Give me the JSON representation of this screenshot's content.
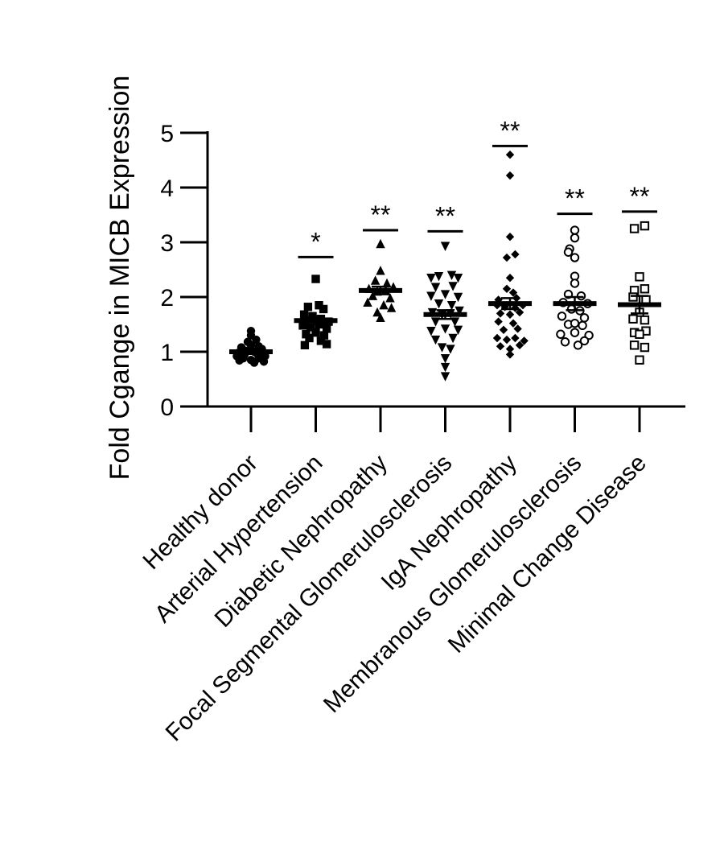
{
  "chart_data": {
    "type": "scatter",
    "ylabel": "Fold Cgange in MICB Expression",
    "xlabel": "",
    "title": "",
    "ylim": [
      0,
      5
    ],
    "yticks": [
      "0",
      "1",
      "2",
      "3",
      "4",
      "5"
    ],
    "grid": false,
    "legend": "none",
    "categories": [
      "Healthy donor",
      "Arterial Hypertension",
      "Diabetic Nephropathy",
      "Focal Segmental Glomerulosclerosis",
      "IgA Nephropathy",
      "Membranous Glomerulosclerosis",
      "Minimal Change Disease"
    ],
    "groups": [
      {
        "name": "Healthy donor",
        "marker": "circle-filled",
        "mean": 1.0,
        "sem": 0.04,
        "significance": "",
        "sig_y": null,
        "points": [
          [
            -0.22,
            0.92
          ],
          [
            -0.12,
            0.88
          ],
          [
            0.0,
            0.85
          ],
          [
            0.12,
            0.88
          ],
          [
            0.22,
            0.92
          ],
          [
            -0.2,
            0.98
          ],
          [
            -0.08,
            1.02
          ],
          [
            0.05,
            1.0
          ],
          [
            0.17,
            1.05
          ],
          [
            -0.15,
            1.08
          ],
          [
            0.0,
            1.12
          ],
          [
            0.12,
            1.1
          ],
          [
            -0.05,
            1.18
          ],
          [
            0.08,
            1.22
          ],
          [
            0.0,
            1.3
          ],
          [
            -0.1,
            0.95
          ],
          [
            0.1,
            0.96
          ],
          [
            0.0,
            1.38
          ],
          [
            -0.18,
            0.84
          ],
          [
            0.2,
            0.82
          ],
          [
            0.05,
            0.8
          ]
        ]
      },
      {
        "name": "Arterial Hypertension",
        "marker": "square-filled",
        "mean": 1.57,
        "sem": 0.06,
        "significance": "*",
        "sig_y": 2.73,
        "points": [
          [
            0.0,
            2.33
          ],
          [
            -0.12,
            1.82
          ],
          [
            0.12,
            1.78
          ],
          [
            0.05,
            1.85
          ],
          [
            -0.18,
            1.68
          ],
          [
            -0.05,
            1.65
          ],
          [
            0.08,
            1.6
          ],
          [
            0.2,
            1.55
          ],
          [
            -0.2,
            1.48
          ],
          [
            -0.08,
            1.45
          ],
          [
            0.05,
            1.5
          ],
          [
            0.17,
            1.42
          ],
          [
            -0.15,
            1.32
          ],
          [
            0.0,
            1.35
          ],
          [
            0.13,
            1.3
          ],
          [
            -0.1,
            1.25
          ],
          [
            0.08,
            1.2
          ],
          [
            -0.17,
            1.12
          ],
          [
            0.17,
            1.14
          ]
        ]
      },
      {
        "name": "Diabetic Nephropathy",
        "marker": "triangle-up-filled",
        "mean": 2.12,
        "sem": 0.07,
        "significance": "**",
        "sig_y": 3.22,
        "points": [
          [
            0.0,
            2.97
          ],
          [
            0.0,
            2.48
          ],
          [
            -0.08,
            2.3
          ],
          [
            0.1,
            2.25
          ],
          [
            -0.18,
            2.15
          ],
          [
            -0.05,
            2.1
          ],
          [
            0.08,
            2.12
          ],
          [
            0.2,
            2.18
          ],
          [
            -0.12,
            2.02
          ],
          [
            0.15,
            1.98
          ],
          [
            -0.2,
            1.9
          ],
          [
            0.05,
            1.85
          ],
          [
            0.17,
            1.8
          ],
          [
            -0.05,
            1.72
          ],
          [
            0.0,
            1.62
          ]
        ]
      },
      {
        "name": "Focal Segmental Glomerulosclerosis",
        "marker": "triangle-down-filled",
        "mean": 1.68,
        "sem": 0.08,
        "significance": "**",
        "sig_y": 3.2,
        "points": [
          [
            0.0,
            2.93
          ],
          [
            -0.22,
            2.35
          ],
          [
            -0.1,
            2.38
          ],
          [
            0.1,
            2.4
          ],
          [
            0.2,
            2.35
          ],
          [
            -0.15,
            2.18
          ],
          [
            0.12,
            2.2
          ],
          [
            -0.22,
            2.02
          ],
          [
            0.0,
            2.05
          ],
          [
            0.2,
            2.0
          ],
          [
            -0.1,
            1.88
          ],
          [
            0.1,
            1.85
          ],
          [
            -0.2,
            1.72
          ],
          [
            -0.05,
            1.68
          ],
          [
            0.08,
            1.7
          ],
          [
            0.22,
            1.75
          ],
          [
            -0.15,
            1.55
          ],
          [
            0.15,
            1.55
          ],
          [
            -0.22,
            1.38
          ],
          [
            0.0,
            1.42
          ],
          [
            0.2,
            1.4
          ],
          [
            -0.15,
            1.22
          ],
          [
            0.12,
            1.25
          ],
          [
            -0.05,
            1.08
          ],
          [
            0.08,
            1.05
          ],
          [
            0.0,
            0.88
          ],
          [
            0.0,
            0.72
          ],
          [
            0.0,
            0.55
          ]
        ]
      },
      {
        "name": "IgA Nephropathy",
        "marker": "diamond-filled",
        "mean": 1.88,
        "sem": 0.1,
        "significance": "**",
        "sig_y": 4.76,
        "points": [
          [
            0.0,
            4.6
          ],
          [
            0.0,
            4.22
          ],
          [
            0.0,
            3.1
          ],
          [
            -0.05,
            2.72
          ],
          [
            0.08,
            2.78
          ],
          [
            0.0,
            2.35
          ],
          [
            -0.05,
            2.15
          ],
          [
            0.05,
            2.08
          ],
          [
            -0.18,
            1.95
          ],
          [
            0.1,
            1.98
          ],
          [
            -0.2,
            1.85
          ],
          [
            -0.08,
            1.82
          ],
          [
            0.08,
            1.8
          ],
          [
            0.2,
            1.85
          ],
          [
            -0.15,
            1.7
          ],
          [
            0.0,
            1.68
          ],
          [
            0.15,
            1.72
          ],
          [
            -0.18,
            1.55
          ],
          [
            0.05,
            1.52
          ],
          [
            -0.1,
            1.4
          ],
          [
            0.12,
            1.42
          ],
          [
            -0.2,
            1.25
          ],
          [
            -0.05,
            1.22
          ],
          [
            0.08,
            1.25
          ],
          [
            0.22,
            1.2
          ],
          [
            -0.15,
            1.1
          ],
          [
            0.15,
            1.12
          ],
          [
            0.0,
            1.05
          ],
          [
            0.0,
            0.95
          ]
        ]
      },
      {
        "name": "Membranous Glomerulosclerosis",
        "marker": "circle-open",
        "mean": 1.88,
        "sem": 0.12,
        "significance": "**",
        "sig_y": 3.52,
        "points": [
          [
            0.0,
            3.22
          ],
          [
            0.0,
            3.08
          ],
          [
            -0.08,
            2.88
          ],
          [
            -0.1,
            2.82
          ],
          [
            0.0,
            2.72
          ],
          [
            0.0,
            2.38
          ],
          [
            0.0,
            2.25
          ],
          [
            -0.1,
            2.05
          ],
          [
            0.1,
            2.02
          ],
          [
            -0.18,
            1.9
          ],
          [
            0.2,
            1.88
          ],
          [
            -0.05,
            1.78
          ],
          [
            0.08,
            1.75
          ],
          [
            -0.2,
            1.65
          ],
          [
            0.15,
            1.62
          ],
          [
            -0.1,
            1.5
          ],
          [
            0.0,
            1.52
          ],
          [
            0.12,
            1.48
          ],
          [
            -0.22,
            1.32
          ],
          [
            0.0,
            1.35
          ],
          [
            0.22,
            1.3
          ],
          [
            -0.15,
            1.18
          ],
          [
            0.15,
            1.2
          ],
          [
            0.05,
            1.12
          ]
        ]
      },
      {
        "name": "Minimal Change Disease",
        "marker": "square-open",
        "mean": 1.86,
        "sem": 0.16,
        "significance": "**",
        "sig_y": 3.56,
        "points": [
          [
            -0.08,
            3.25
          ],
          [
            0.08,
            3.3
          ],
          [
            0.0,
            2.37
          ],
          [
            -0.08,
            2.12
          ],
          [
            0.08,
            2.15
          ],
          [
            -0.1,
            2.0
          ],
          [
            0.1,
            1.95
          ],
          [
            0.0,
            1.72
          ],
          [
            -0.1,
            1.6
          ],
          [
            0.08,
            1.58
          ],
          [
            -0.08,
            1.35
          ],
          [
            0.1,
            1.38
          ],
          [
            0.0,
            1.32
          ],
          [
            -0.08,
            1.12
          ],
          [
            0.08,
            1.08
          ],
          [
            0.0,
            0.85
          ]
        ]
      }
    ]
  }
}
